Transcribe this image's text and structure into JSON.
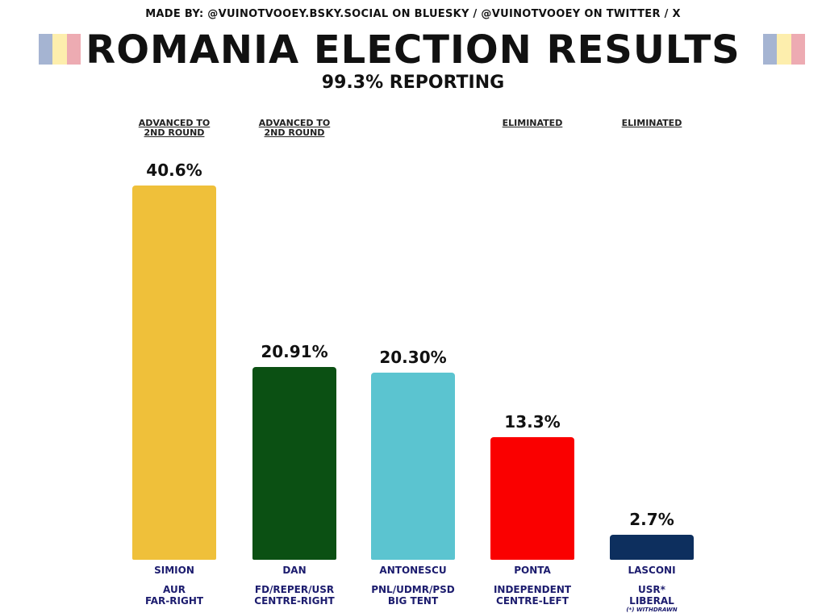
{
  "header": {
    "credit": "MADE BY: @VUINOTVOOEY.BSKY.SOCIAL ON BLUESKY / @VUINOTVOOEY ON TWITTER / X",
    "title": "ROMANIA ELECTION RESULTS",
    "subtitle": "99.3% REPORTING",
    "flag_icon": "romania-flag",
    "flag_colors": [
      "#002B7F",
      "#FCD116",
      "#CE1126"
    ]
  },
  "chart_data": {
    "type": "bar",
    "title": "ROMANIA ELECTION RESULTS",
    "subtitle": "99.3% REPORTING",
    "categories": [
      "SIMION",
      "DAN",
      "ANTONESCU",
      "PONTA",
      "LASCONI"
    ],
    "values": [
      40.6,
      20.91,
      20.3,
      13.3,
      2.7
    ],
    "value_labels": [
      "40.6%",
      "20.91%",
      "20.30%",
      "13.3%",
      "2.7%"
    ],
    "parties": [
      [
        "AUR",
        "FAR-RIGHT"
      ],
      [
        "FD/REPER/USR",
        "CENTRE-RIGHT"
      ],
      [
        "PNL/UDMR/PSD",
        "BIG TENT"
      ],
      [
        "INDEPENDENT",
        "CENTRE-LEFT"
      ],
      [
        "USR*",
        "LIBERAL"
      ]
    ],
    "status": [
      [
        "ADVANCED TO",
        "2ND ROUND"
      ],
      [
        "ADVANCED TO",
        "2ND ROUND"
      ],
      [
        "",
        ""
      ],
      [
        "ELIMINATED",
        ""
      ],
      [
        "ELIMINATED",
        ""
      ]
    ],
    "colors": [
      "#EFC03A",
      "#0B5013",
      "#5BC4D0",
      "#FA0000",
      "#0D2F5E"
    ],
    "footnote": "(*) WITHDRAWN",
    "xlabel": "",
    "ylabel": "",
    "ylim": [
      0,
      42
    ],
    "grid": false,
    "legend": "none"
  }
}
